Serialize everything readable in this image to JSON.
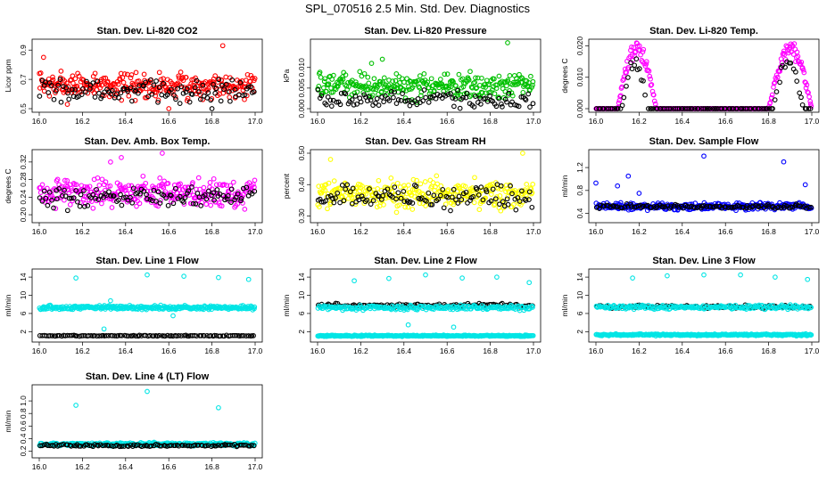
{
  "main_title": "SPL_070516  2.5 Min. Std. Dev. Diagnostics",
  "chart_data": [
    {
      "type": "scatter",
      "title": "Stan. Dev. Li-820 CO2",
      "ylabel": "Licor ppm",
      "xlim": [
        16.0,
        17.0
      ],
      "ylim": [
        0.5,
        0.95
      ],
      "xticks": [
        "16.0",
        "16.2",
        "16.4",
        "16.6",
        "16.8",
        "17.0"
      ],
      "yticks": [
        "0.5",
        "0.7",
        "0.9"
      ],
      "series": [
        {
          "name": "primary",
          "color": "#ff0000",
          "model": "noise",
          "mean": 0.66,
          "spread": 0.07,
          "outliers": [
            [
              16.02,
              0.85
            ],
            [
              16.85,
              0.93
            ],
            [
              16.6,
              0.5
            ],
            [
              16.13,
              0.53
            ]
          ]
        },
        {
          "name": "secondary",
          "color": "#000000",
          "model": "noise",
          "mean": 0.62,
          "spread": 0.06,
          "outliers": [
            [
              16.8,
              0.5
            ]
          ]
        }
      ]
    },
    {
      "type": "scatter",
      "title": "Stan. Dev. Li-820 Pressure",
      "ylabel": "kPa",
      "xlim": [
        16.0,
        17.0
      ],
      "ylim": [
        0.0,
        0.016
      ],
      "xticks": [
        "16.0",
        "16.2",
        "16.4",
        "16.6",
        "16.8",
        "17.0"
      ],
      "yticks": [
        "0.000",
        "0.005",
        "0.010"
      ],
      "series": [
        {
          "name": "primary",
          "color": "#00c000",
          "model": "noise",
          "mean": 0.0055,
          "spread": 0.0025,
          "outliers": [
            [
              16.88,
              0.0165
            ],
            [
              16.25,
              0.011
            ],
            [
              16.3,
              0.012
            ]
          ]
        },
        {
          "name": "secondary",
          "color": "#000000",
          "model": "noise",
          "mean": 0.0022,
          "spread": 0.0015,
          "outliers": []
        }
      ]
    },
    {
      "type": "scatter",
      "title": "Stan. Dev. Li-820 Temp.",
      "ylabel": "degrees C",
      "xlim": [
        16.0,
        17.0
      ],
      "ylim": [
        0.0,
        0.021
      ],
      "xticks": [
        "16.0",
        "16.2",
        "16.4",
        "16.6",
        "16.8",
        "17.0"
      ],
      "yticks": [
        "0.000",
        "0.010",
        "0.020"
      ],
      "series": [
        {
          "name": "primary",
          "color": "#ff00ff",
          "model": "humps",
          "base": 0.0,
          "peak": 0.019,
          "humps": [
            [
              16.1,
              16.28
            ],
            [
              16.8,
              17.0
            ]
          ]
        },
        {
          "name": "secondary",
          "color": "#000000",
          "model": "humps",
          "base": 0.0,
          "peak": 0.015,
          "humps": [
            [
              16.12,
              16.24
            ],
            [
              16.82,
              16.96
            ]
          ]
        }
      ]
    },
    {
      "type": "scatter",
      "title": "Stan. Dev. Amb. Box Temp.",
      "ylabel": "degrees C",
      "xlim": [
        16.0,
        17.0
      ],
      "ylim": [
        0.19,
        0.34
      ],
      "xticks": [
        "16.0",
        "16.2",
        "16.4",
        "16.6",
        "16.8",
        "17.0"
      ],
      "yticks": [
        "0.20",
        "0.24",
        "0.28",
        "0.32"
      ],
      "series": [
        {
          "name": "primary",
          "color": "#ff00ff",
          "model": "noise",
          "mean": 0.25,
          "spread": 0.025,
          "outliers": [
            [
              16.57,
              0.34
            ],
            [
              16.33,
              0.32
            ],
            [
              16.38,
              0.33
            ]
          ]
        },
        {
          "name": "secondary",
          "color": "#000000",
          "model": "noise",
          "mean": 0.24,
          "spread": 0.02,
          "outliers": []
        }
      ]
    },
    {
      "type": "scatter",
      "title": "Stan. Dev. Gas Stream RH",
      "ylabel": "percent",
      "xlim": [
        16.0,
        17.0
      ],
      "ylim": [
        0.29,
        0.5
      ],
      "xticks": [
        "16.0",
        "16.2",
        "16.4",
        "16.6",
        "16.8",
        "17.0"
      ],
      "yticks": [
        "0.30",
        "0.40",
        "0.50"
      ],
      "series": [
        {
          "name": "primary",
          "color": "#ffff00",
          "model": "noise",
          "mean": 0.37,
          "spread": 0.035,
          "outliers": [
            [
              16.95,
              0.5
            ],
            [
              16.06,
              0.48
            ]
          ]
        },
        {
          "name": "secondary",
          "color": "#000000",
          "model": "noise",
          "mean": 0.36,
          "spread": 0.03,
          "outliers": []
        }
      ]
    },
    {
      "type": "scatter",
      "title": "Stan. Dev. Sample Flow",
      "ylabel": "ml/min",
      "xlim": [
        16.0,
        17.0
      ],
      "ylim": [
        0.3,
        1.45
      ],
      "xticks": [
        "16.0",
        "16.2",
        "16.4",
        "16.6",
        "16.8",
        "17.0"
      ],
      "yticks": [
        "0.4",
        "0.8",
        "1.2"
      ],
      "series": [
        {
          "name": "primary",
          "color": "#0000ff",
          "model": "noise",
          "mean": 0.52,
          "spread": 0.05,
          "outliers": [
            [
              16.5,
              1.4
            ],
            [
              16.87,
              1.3
            ],
            [
              16.0,
              0.93
            ],
            [
              16.15,
              1.05
            ],
            [
              16.1,
              0.88
            ],
            [
              16.97,
              0.9
            ],
            [
              16.2,
              0.75
            ]
          ]
        },
        {
          "name": "secondary",
          "color": "#000000",
          "model": "noise",
          "mean": 0.52,
          "spread": 0.03,
          "outliers": []
        }
      ]
    },
    {
      "type": "scatter",
      "title": "Stan. Dev. Line 1 Flow",
      "ylabel": "ml/min",
      "xlim": [
        16.0,
        17.0
      ],
      "ylim": [
        0.5,
        15.0
      ],
      "xticks": [
        "16.0",
        "16.2",
        "16.4",
        "16.6",
        "16.8",
        "17.0"
      ],
      "yticks": [
        "2",
        "6",
        "10",
        "14"
      ],
      "series": [
        {
          "name": "primary",
          "color": "#00e5e5",
          "model": "noise",
          "mean": 7.3,
          "spread": 0.35,
          "outliers": [
            [
              16.17,
              13.8
            ],
            [
              16.5,
              14.5
            ],
            [
              16.67,
              14.2
            ],
            [
              16.83,
              13.9
            ],
            [
              16.97,
              13.5
            ],
            [
              16.33,
              8.8
            ],
            [
              16.62,
              5.5
            ],
            [
              16.3,
              2.6
            ]
          ]
        },
        {
          "name": "secondary",
          "color": "#000000",
          "model": "noise",
          "mean": 1.1,
          "spread": 0.08,
          "outliers": []
        }
      ]
    },
    {
      "type": "scatter",
      "title": "Stan. Dev. Line 2 Flow",
      "ylabel": "ml/min",
      "xlim": [
        16.0,
        17.0
      ],
      "ylim": [
        0.5,
        15.0
      ],
      "xticks": [
        "16.0",
        "16.2",
        "16.4",
        "16.6",
        "16.8",
        "17.0"
      ],
      "yticks": [
        "2",
        "6",
        "10",
        "14"
      ],
      "series": [
        {
          "name": "primary",
          "color": "#00e5e5",
          "model": "noise",
          "mean": 1.1,
          "spread": 0.12,
          "outliers": [
            [
              16.33,
              13.7
            ],
            [
              16.5,
              14.5
            ],
            [
              16.67,
              13.8
            ],
            [
              16.83,
              14.0
            ],
            [
              16.98,
              12.8
            ],
            [
              16.17,
              13.2
            ],
            [
              16.42,
              3.5
            ],
            [
              16.63,
              3.0
            ]
          ]
        },
        {
          "name": "secondary",
          "color": "#000000",
          "model": "noise",
          "mean": 7.8,
          "spread": 0.3,
          "outliers": []
        },
        {
          "name": "tertiary",
          "color": "#00e5e5",
          "model": "noise",
          "mean": 7.3,
          "spread": 0.4,
          "outliers": []
        }
      ]
    },
    {
      "type": "scatter",
      "title": "Stan. Dev. Line 3 Flow",
      "ylabel": "ml/min",
      "xlim": [
        16.0,
        17.0
      ],
      "ylim": [
        0.5,
        15.0
      ],
      "xticks": [
        "16.0",
        "16.2",
        "16.4",
        "16.6",
        "16.8",
        "17.0"
      ],
      "yticks": [
        "2",
        "6",
        "10",
        "14"
      ],
      "series": [
        {
          "name": "primary",
          "color": "#00e5e5",
          "model": "noise",
          "mean": 1.3,
          "spread": 0.15,
          "outliers": [
            [
              16.17,
              13.8
            ],
            [
              16.33,
              14.3
            ],
            [
              16.5,
              14.5
            ],
            [
              16.67,
              14.5
            ],
            [
              16.83,
              14.0
            ],
            [
              16.98,
              13.5
            ]
          ]
        },
        {
          "name": "secondary",
          "color": "#000000",
          "model": "noise",
          "mean": 7.5,
          "spread": 0.3,
          "outliers": []
        },
        {
          "name": "tertiary",
          "color": "#00e5e5",
          "model": "noise",
          "mean": 7.4,
          "spread": 0.35,
          "outliers": []
        }
      ]
    },
    {
      "type": "scatter",
      "title": "Stan. Dev. Line 4 (LT) Flow",
      "ylabel": "ml/min",
      "xlim": [
        16.0,
        17.0
      ],
      "ylim": [
        0.15,
        1.2
      ],
      "xticks": [
        "16.0",
        "16.2",
        "16.4",
        "16.6",
        "16.8",
        "17.0"
      ],
      "yticks": [
        "0.2",
        "0.4",
        "0.6",
        "0.8",
        "1.0"
      ],
      "series": [
        {
          "name": "primary",
          "color": "#00e5e5",
          "model": "noise",
          "mean": 0.31,
          "spread": 0.02,
          "outliers": [
            [
              16.5,
              1.15
            ],
            [
              16.17,
              0.93
            ],
            [
              16.83,
              0.89
            ]
          ]
        },
        {
          "name": "secondary",
          "color": "#000000",
          "model": "noise",
          "mean": 0.29,
          "spread": 0.015,
          "outliers": []
        }
      ]
    }
  ]
}
